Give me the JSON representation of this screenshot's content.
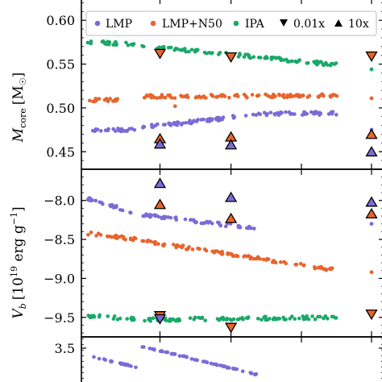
{
  "chart_data": [
    {
      "type": "scatter",
      "ylabel": "M_core [M_sun]",
      "ylabel_parts": {
        "sym": "M",
        "sub": "core",
        "unit_open": "[M",
        "unit_close": "]"
      },
      "ylim": [
        0.43,
        0.625
      ],
      "yticks": [
        0.6,
        0.55,
        0.5,
        0.45
      ],
      "ytick_labels": [
        "0.60",
        "0.55",
        "0.50",
        "0.45"
      ],
      "xlim": [
        0,
        1
      ],
      "grid": false,
      "legend": {
        "placement": "top",
        "entries": [
          {
            "label": "LMP",
            "marker": "circle",
            "color": "#7b6bd6"
          },
          {
            "label": "LMP+N50",
            "marker": "circle",
            "color": "#e8642c"
          },
          {
            "label": "IPA",
            "marker": "circle",
            "color": "#1aa868"
          },
          {
            "label": "0.01x",
            "marker": "triangle-down",
            "color": "#000000"
          },
          {
            "label": "10x",
            "marker": "triangle-up",
            "color": "#000000"
          }
        ]
      },
      "series": [
        {
          "name": "LMP",
          "color": "#7b6bd6",
          "bands": [
            {
              "x": [
                0.02,
                0.18
              ],
              "y": [
                0.474,
                0.475
              ]
            },
            {
              "x": [
                0.2,
                0.58
              ],
              "y": [
                0.478,
                0.492
              ]
            },
            {
              "x": [
                0.58,
                0.85
              ],
              "y": [
                0.493,
                0.494
              ]
            }
          ],
          "isolated": [
            {
              "x": 0.96,
              "y": 0.475
            }
          ]
        },
        {
          "name": "LMP+N50",
          "color": "#e8642c",
          "bands": [
            {
              "x": [
                0.02,
                0.14
              ],
              "y": [
                0.509,
                0.509
              ]
            },
            {
              "x": [
                0.2,
                0.85
              ],
              "y": [
                0.513,
                0.514
              ]
            }
          ],
          "isolated": [
            {
              "x": 0.96,
              "y": 0.511
            },
            {
              "x": 0.31,
              "y": 0.502
            }
          ]
        },
        {
          "name": "IPA",
          "color": "#1aa868",
          "bands": [
            {
              "x": [
                0.02,
                0.18
              ],
              "y": [
                0.575,
                0.573
              ]
            },
            {
              "x": [
                0.2,
                0.85
              ],
              "y": [
                0.571,
                0.549
              ]
            }
          ],
          "isolated": [
            {
              "x": 0.96,
              "y": 0.544
            }
          ]
        },
        {
          "name": "0.01x",
          "marker": "triangle-down",
          "points": [
            {
              "x": 0.26,
              "y": 0.562,
              "color": "#e8642c"
            },
            {
              "x": 0.495,
              "y": 0.558,
              "color": "#e8642c"
            },
            {
              "x": 0.96,
              "y": 0.559,
              "color": "#e8642c"
            }
          ]
        },
        {
          "name": "10x",
          "marker": "triangle-up",
          "points": [
            {
              "x": 0.26,
              "y": 0.465,
              "color": "#e8642c"
            },
            {
              "x": 0.26,
              "y": 0.459,
              "color": "#7b6bd6"
            },
            {
              "x": 0.495,
              "y": 0.467,
              "color": "#e8642c"
            },
            {
              "x": 0.495,
              "y": 0.458,
              "color": "#7b6bd6"
            },
            {
              "x": 0.96,
              "y": 0.47,
              "color": "#e8642c"
            },
            {
              "x": 0.96,
              "y": 0.45,
              "color": "#7b6bd6"
            }
          ]
        }
      ]
    },
    {
      "type": "scatter",
      "ylabel": "V_b [10^19 erg g^-1]",
      "ylabel_parts": {
        "sym": "V",
        "sub": "b",
        "unit_open": "[10",
        "exp": "19",
        "unit_mid": " erg g",
        "exp2": "−1",
        "unit_close": "]"
      },
      "ylim": [
        -9.75,
        -7.6
      ],
      "yticks": [
        -8.0,
        -8.5,
        -9.0,
        -9.5
      ],
      "ytick_labels": [
        "−8.0",
        "−8.5",
        "−9.0",
        "−9.5"
      ],
      "xlim": [
        0,
        1
      ],
      "grid": false,
      "series": [
        {
          "name": "LMP",
          "color": "#7b6bd6",
          "bands": [
            {
              "x": [
                0.02,
                0.18
              ],
              "y": [
                -7.98,
                -8.16
              ]
            },
            {
              "x": [
                0.2,
                0.58
              ],
              "y": [
                -8.18,
                -8.36
              ]
            }
          ],
          "isolated": [
            {
              "x": 0.96,
              "y": -8.3
            }
          ]
        },
        {
          "name": "LMP+N50",
          "color": "#e8642c",
          "bands": [
            {
              "x": [
                0.02,
                0.18
              ],
              "y": [
                -8.42,
                -8.5
              ]
            },
            {
              "x": [
                0.2,
                0.85
              ],
              "y": [
                -8.52,
                -8.9
              ]
            }
          ],
          "isolated": [
            {
              "x": 0.96,
              "y": -8.92
            }
          ]
        },
        {
          "name": "IPA",
          "color": "#1aa868",
          "bands": [
            {
              "x": [
                0.02,
                0.18
              ],
              "y": [
                -9.48,
                -9.52
              ]
            },
            {
              "x": [
                0.2,
                0.85
              ],
              "y": [
                -9.53,
                -9.5
              ]
            }
          ],
          "isolated": [
            {
              "x": 0.96,
              "y": -9.44
            }
          ]
        },
        {
          "name": "0.01x",
          "marker": "triangle-down",
          "points": [
            {
              "x": 0.26,
              "y": -9.48,
              "color": "#e8642c"
            },
            {
              "x": 0.26,
              "y": -9.52,
              "color": "#7b6bd6"
            },
            {
              "x": 0.495,
              "y": -9.63,
              "color": "#e8642c"
            },
            {
              "x": 0.96,
              "y": -9.46,
              "color": "#e8642c"
            }
          ]
        },
        {
          "name": "10x",
          "marker": "triangle-up",
          "points": [
            {
              "x": 0.26,
              "y": -7.78,
              "color": "#7b6bd6"
            },
            {
              "x": 0.26,
              "y": -8.05,
              "color": "#e8642c"
            },
            {
              "x": 0.495,
              "y": -7.96,
              "color": "#7b6bd6"
            },
            {
              "x": 0.495,
              "y": -8.23,
              "color": "#e8642c"
            },
            {
              "x": 0.96,
              "y": -8.02,
              "color": "#7b6bd6"
            },
            {
              "x": 0.96,
              "y": -8.17,
              "color": "#e8642c"
            }
          ]
        }
      ]
    },
    {
      "type": "scatter",
      "ylim": [
        2.3,
        3.8
      ],
      "yticks": [
        3.5
      ],
      "ytick_labels": [
        "3.5"
      ],
      "xlim": [
        0,
        1
      ],
      "grid": false,
      "series": [
        {
          "name": "LMP",
          "color": "#7b6bd6",
          "bands": [
            {
              "x": [
                0.02,
                0.18
              ],
              "y": [
                3.3,
                3.0
              ]
            },
            {
              "x": [
                0.2,
                0.58
              ],
              "y": [
                3.55,
                2.8
              ]
            }
          ]
        }
      ]
    }
  ]
}
